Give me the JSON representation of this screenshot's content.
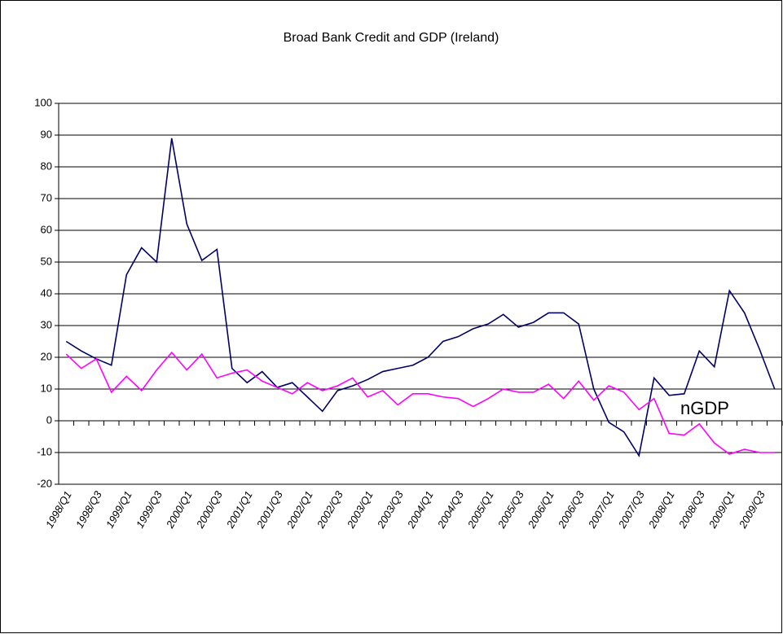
{
  "chart_data": {
    "type": "line",
    "title": "Broad Bank Credit and GDP (Ireland)",
    "categories": [
      "1998/Q1",
      null,
      "1998/Q3",
      null,
      "1999/Q1",
      null,
      "1999/Q3",
      null,
      "2000/Q1",
      null,
      "2000/Q3",
      null,
      "2001/Q1",
      null,
      "2001/Q3",
      null,
      "2002/Q1",
      null,
      "2002/Q3",
      null,
      "2003/Q1",
      null,
      "2003/Q3",
      null,
      "2004/Q1",
      null,
      "2004/Q3",
      null,
      "2005/Q1",
      null,
      "2005/Q3",
      null,
      "2006/Q1",
      null,
      "2006/Q3",
      null,
      "2007/Q1",
      null,
      "2007/Q3",
      null,
      "2008/Q1",
      null,
      "2008/Q3",
      null,
      "2009/Q1",
      null,
      "2009/Q3",
      null
    ],
    "series": [
      {
        "color": "#000066",
        "values": [
          25,
          22,
          19.5,
          17.5,
          46,
          54.5,
          50,
          89,
          62,
          50.5,
          54,
          16.5,
          12,
          15.5,
          10.5,
          12,
          7.5,
          3,
          9.5,
          11,
          13,
          15.5,
          16.5,
          17.5,
          20,
          25,
          26.5,
          29,
          30.5,
          33.5,
          29.5,
          31,
          34,
          34,
          30.5,
          10,
          -0.5,
          -3.5,
          -11,
          13.5,
          8,
          8.5,
          22,
          17,
          41,
          34,
          22.5,
          10
        ]
      },
      {
        "name": "nGDP",
        "color": "#ff00ff",
        "values": [
          21,
          16.5,
          19.5,
          9,
          14,
          9.5,
          16,
          21.5,
          16,
          21,
          13.5,
          15,
          16,
          12.5,
          10.5,
          8.5,
          12,
          9.5,
          11,
          13.5,
          7.5,
          9.5,
          5,
          8.5,
          8.5,
          7.5,
          7,
          4.5,
          7,
          10,
          9,
          9,
          11.5,
          7,
          12.5,
          6.5,
          11,
          9,
          3.5,
          7,
          -4,
          -4.5,
          -1,
          -7,
          -10.5,
          -9,
          -10,
          -10
        ]
      }
    ],
    "ylim": [
      -20,
      100
    ],
    "yticks": [
      -20,
      -10,
      0,
      10,
      20,
      30,
      40,
      50,
      60,
      70,
      80,
      90,
      100
    ],
    "grid": true
  }
}
